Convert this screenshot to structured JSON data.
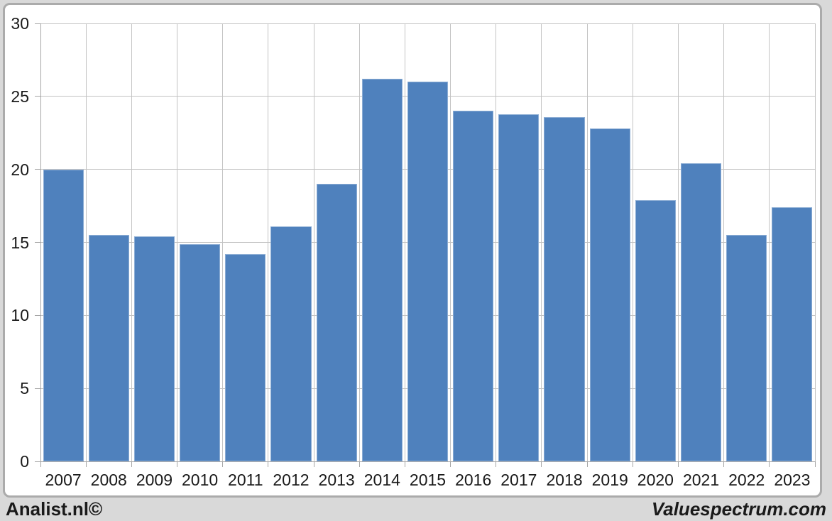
{
  "chart_data": {
    "type": "bar",
    "title": "",
    "xlabel": "",
    "ylabel": "",
    "categories": [
      "2007",
      "2008",
      "2009",
      "2010",
      "2011",
      "2012",
      "2013",
      "2014",
      "2015",
      "2016",
      "2017",
      "2018",
      "2019",
      "2020",
      "2021",
      "2022",
      "2023"
    ],
    "values": [
      20.0,
      15.5,
      15.4,
      14.9,
      14.2,
      16.1,
      19.0,
      26.2,
      26.0,
      24.0,
      23.8,
      23.6,
      22.8,
      17.9,
      20.4,
      15.5,
      17.4
    ],
    "ylim": [
      0,
      30
    ],
    "yticks": [
      0,
      5,
      10,
      15,
      20,
      25,
      30
    ],
    "grid": true,
    "legend": false,
    "bar_color": "#4f81bd",
    "gridline_color": "#c3c3c3",
    "axis_color": "#a6a6a6",
    "tick_label_color": "#1a1a1a"
  },
  "footer": {
    "left_label": "Analist.nl©",
    "right_label": "Valuespectrum.com"
  }
}
